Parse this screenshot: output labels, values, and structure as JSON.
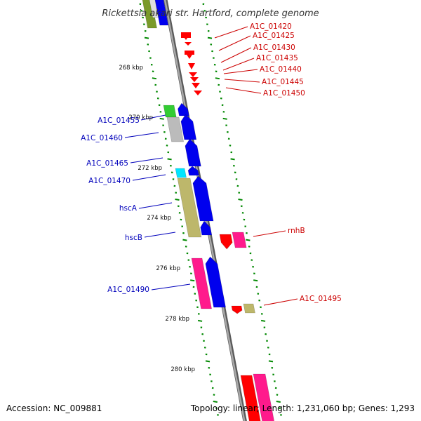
{
  "title": "Rickettsia akari str. Hartford, complete genome",
  "footer": {
    "accession": "Accession: NC_009881",
    "summary": "Topology: linear; Length: 1,231,060 bp; Genes: 1,293"
  },
  "scale_labels": [
    "268 kbp",
    "270 kbp",
    "272 kbp",
    "274 kbp",
    "276 kbp",
    "278 kbp",
    "280 kbp"
  ],
  "colors": {
    "red_label": "#cc0000",
    "blue_label": "#0000bb",
    "backbone": "#8c8c8c",
    "tick": "#008800",
    "red": "#ff0000",
    "blue": "#0000ee",
    "pink": "#ff1a8c",
    "khaki": "#bdb76b",
    "green": "#33cc33",
    "gray": "#bbbbbb",
    "cyan": "#00e5ff",
    "olive": "#7a9a2a"
  },
  "right_labels": [
    "A1C_01420",
    "A1C_01425",
    "A1C_01430",
    "A1C_01435",
    "A1C_01440",
    "A1C_01445",
    "A1C_01450",
    "rnhB",
    "A1C_01495"
  ],
  "left_labels": [
    "A1C_01455",
    "A1C_01460",
    "A1C_01465",
    "A1C_01470",
    "hscA",
    "hscB",
    "A1C_01490"
  ]
}
